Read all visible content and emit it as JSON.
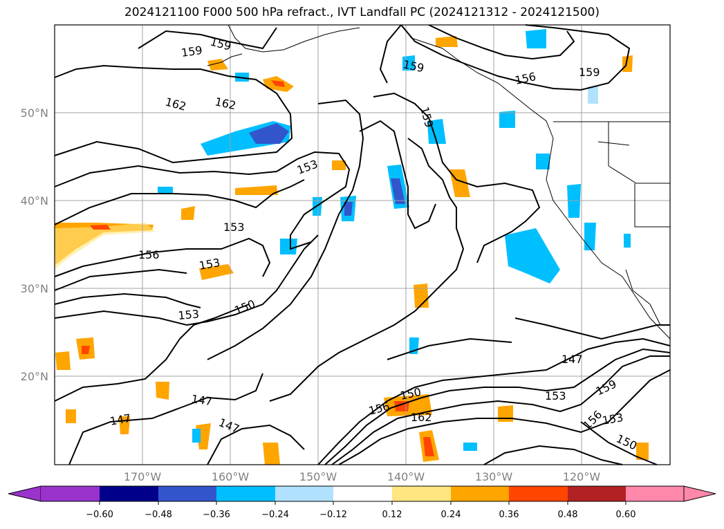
{
  "title": "2024121100 F000 500 hPa refract., IVT Landfall PC (2024121312 - 2024121500)",
  "map": {
    "lon_labels": [
      "170°W",
      "160°W",
      "150°W",
      "140°W",
      "130°W",
      "120°W"
    ],
    "lat_labels": [
      "50°N",
      "40°N",
      "30°N",
      "20°N"
    ],
    "contour_labels": [
      "159",
      "159",
      "159",
      "162",
      "162",
      "153",
      "153",
      "156",
      "153",
      "150",
      "153",
      "147",
      "147",
      "147",
      "159",
      "156",
      "159",
      "150",
      "156",
      "162",
      "147",
      "153",
      "159",
      "156",
      "153",
      "150"
    ]
  },
  "colorbar": {
    "tick_labels": [
      "−0.60",
      "−0.48",
      "−0.36",
      "−0.24",
      "−0.12",
      "0.12",
      "0.24",
      "0.36",
      "0.48",
      "0.60"
    ],
    "colors": [
      "#9933cc",
      "#00008b",
      "#3355cc",
      "#00bfff",
      "#b0e2ff",
      "#ffffff",
      "#ffe680",
      "#ffa500",
      "#ff4500",
      "#b22222",
      "#ff88aa"
    ]
  },
  "shading_colors": {
    "neg_light": "#b0e2ff",
    "neg_mid": "#00bfff",
    "neg_dark": "#3355cc",
    "pos_light": "#ffe680",
    "pos_mid": "#ffa500",
    "pos_dark": "#ff4500"
  }
}
